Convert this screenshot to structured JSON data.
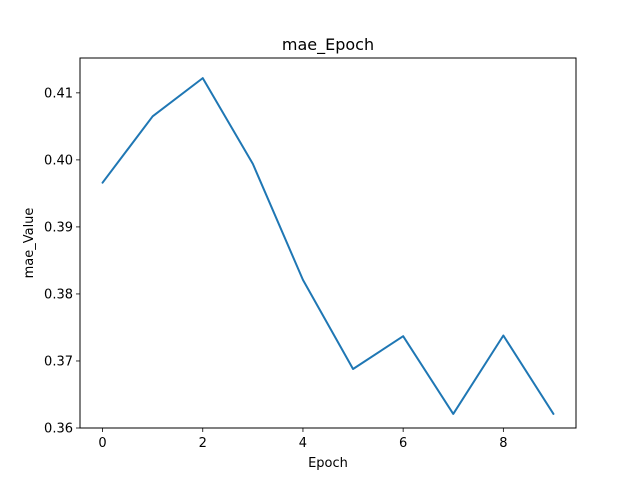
{
  "chart_data": {
    "type": "line",
    "title": "mae_Epoch",
    "xlabel": "Epoch",
    "ylabel": "mae_Value",
    "x": [
      0,
      1,
      2,
      3,
      4,
      5,
      6,
      7,
      8,
      9
    ],
    "series": [
      {
        "values": [
          0.3966,
          0.4065,
          0.4122,
          0.3994,
          0.3821,
          0.3688,
          0.3737,
          0.3621,
          0.3738,
          0.3621
        ],
        "color": "#1f77b4"
      }
    ],
    "xlim": [
      -0.45,
      9.45
    ],
    "ylim": [
      0.36,
      0.4152
    ],
    "xticks": [
      0,
      2,
      4,
      6,
      8
    ],
    "xtick_labels": [
      "0",
      "2",
      "4",
      "6",
      "8"
    ],
    "yticks": [
      0.36,
      0.37,
      0.38,
      0.39,
      0.4,
      0.41
    ],
    "ytick_labels": [
      "0.36",
      "0.37",
      "0.38",
      "0.39",
      "0.40",
      "0.41"
    ],
    "grid": false,
    "legend": false
  }
}
